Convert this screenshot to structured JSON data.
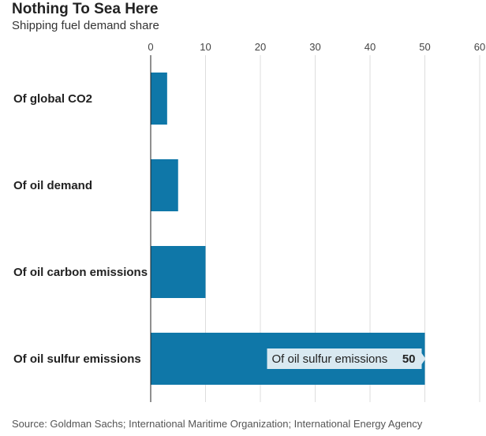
{
  "title": "Nothing To Sea Here",
  "subtitle": "Shipping fuel demand share",
  "source": "Source: Goldman Sachs; International Maritime Organization; International Energy Agency",
  "colors": {
    "bar": "#0f77a8",
    "grid": "#dddddd",
    "axis": "#222222",
    "tooltip_bg": "#d9e9f1"
  },
  "chart_data": {
    "type": "bar",
    "orientation": "horizontal",
    "categories": [
      "Of global CO2",
      "Of oil demand",
      "Of oil carbon emissions",
      "Of oil sulfur emissions"
    ],
    "values": [
      3,
      5,
      10,
      50
    ],
    "xlim": [
      0,
      60
    ],
    "xticks": [
      0,
      10,
      20,
      30,
      40,
      50,
      60
    ],
    "grid": true,
    "tooltip": {
      "label": "Of oil sulfur emissions",
      "value": "50"
    }
  }
}
